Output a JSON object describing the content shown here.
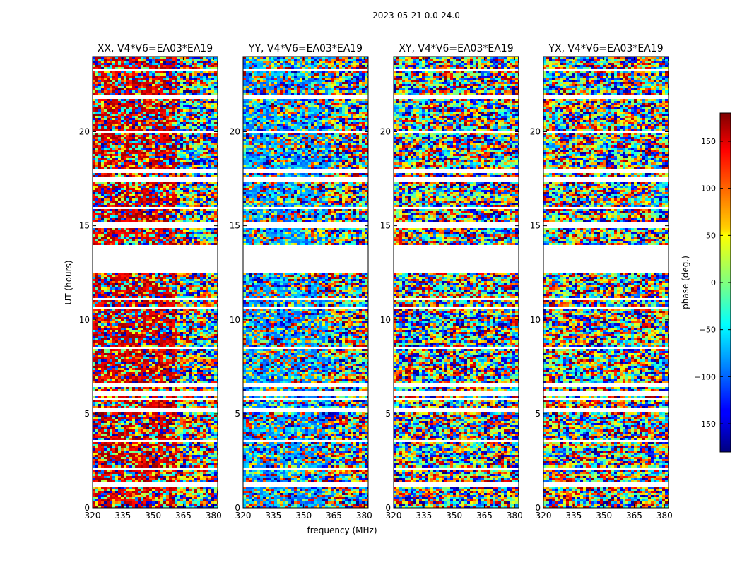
{
  "figure": {
    "suptitle": "2023-05-21 0.0-24.0",
    "xlabel": "frequency (MHz)",
    "ylabel": "UT (hours)",
    "colorbar_label": "phase (deg.)"
  },
  "chart_data": {
    "type": "heatmap",
    "title": "2023-05-21 0.0-24.0",
    "xlabel": "frequency (MHz)",
    "ylabel": "UT (hours)",
    "xlim": [
      320,
      382
    ],
    "ylim": [
      0,
      24
    ],
    "xticks": [
      320,
      335,
      350,
      365,
      380
    ],
    "yticks": [
      0,
      5,
      10,
      15,
      20
    ],
    "colorbar": {
      "label": "phase (deg.)",
      "range": [
        -180,
        180
      ],
      "ticks": [
        -150,
        -100,
        -50,
        0,
        50,
        100,
        150
      ],
      "tick_labels": [
        "−150",
        "−100",
        "−50",
        "0",
        "50",
        "100",
        "150"
      ],
      "colormap": "jet"
    },
    "panels": [
      {
        "title": "XX, V4*V6=EA03*EA19",
        "offset_deg": 150,
        "coherent": 0.45
      },
      {
        "title": "YY, V4*V6=EA03*EA19",
        "offset_deg": -80,
        "coherent": 0.4
      },
      {
        "title": "XY, V4*V6=EA03*EA19",
        "offset_deg": 0,
        "coherent": 0.05
      },
      {
        "title": "YX, V4*V6=EA03*EA19",
        "offset_deg": 0,
        "coherent": 0.05
      }
    ],
    "flagged_intervals_hours": [
      [
        12.5,
        13.95
      ],
      [
        14.9,
        15.2
      ],
      [
        5.05,
        5.25
      ],
      [
        5.72,
        5.85
      ],
      [
        6.0,
        6.25
      ],
      [
        6.45,
        6.6
      ],
      [
        11.0,
        11.1
      ],
      [
        10.55,
        10.65
      ],
      [
        17.3,
        17.6
      ],
      [
        17.85,
        18.0
      ],
      [
        19.55,
        19.65
      ],
      [
        19.95,
        20.05
      ],
      [
        21.7,
        21.95
      ],
      [
        1.15,
        1.35
      ],
      [
        0.62,
        0.72
      ],
      [
        2.0,
        2.1
      ],
      [
        3.5,
        3.6
      ],
      [
        8.45,
        8.6
      ],
      [
        15.9,
        16.0
      ],
      [
        23.2,
        23.3
      ]
    ]
  }
}
